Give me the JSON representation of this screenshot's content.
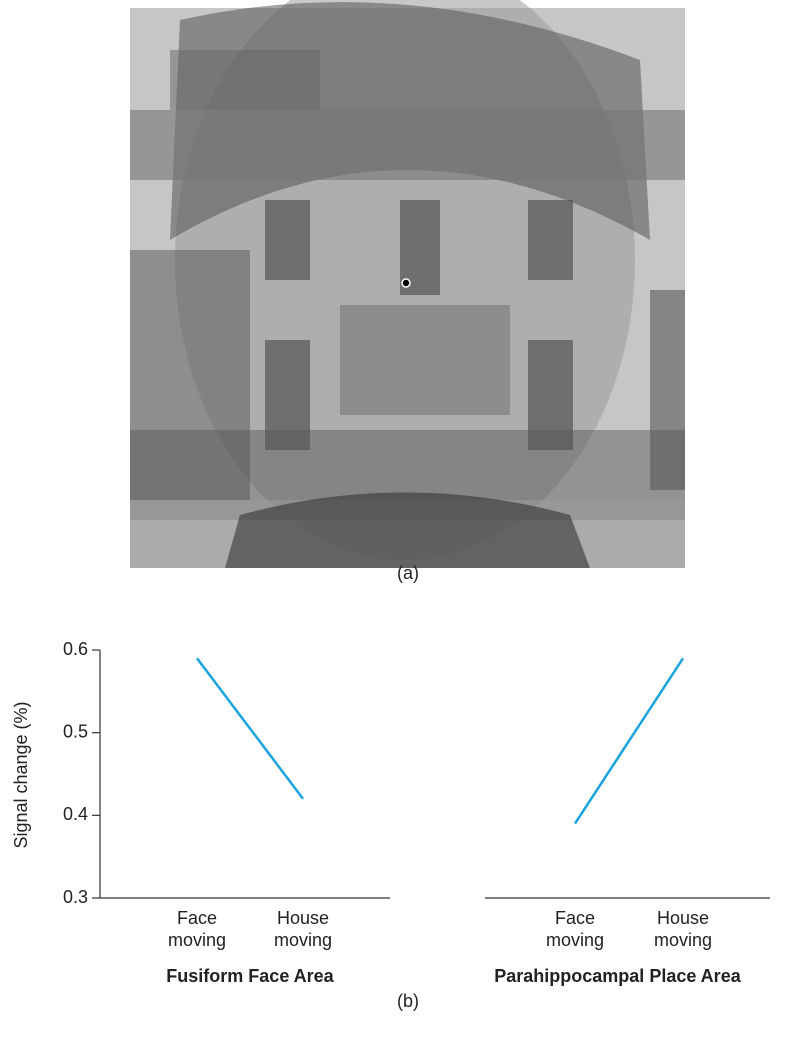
{
  "figure": {
    "label_a": "(a)",
    "label_b": "(b)"
  },
  "chart_data": [
    {
      "type": "line",
      "title": "Fusiform Face Area",
      "y_label": "Signal change (%)",
      "categories": [
        "Face moving",
        "House moving"
      ],
      "values": [
        0.59,
        0.42
      ],
      "color": "#1aa3dd",
      "ylim": [
        0.3,
        0.6
      ],
      "yticks": [
        0.3,
        0.4,
        0.5,
        0.6
      ]
    },
    {
      "type": "line",
      "title": "Parahippocampal Place Area",
      "categories": [
        "Face moving",
        "House moving"
      ],
      "values": [
        0.39,
        0.59
      ],
      "color": "#1aa3dd",
      "ylim": [
        0.3,
        0.6
      ]
    }
  ]
}
